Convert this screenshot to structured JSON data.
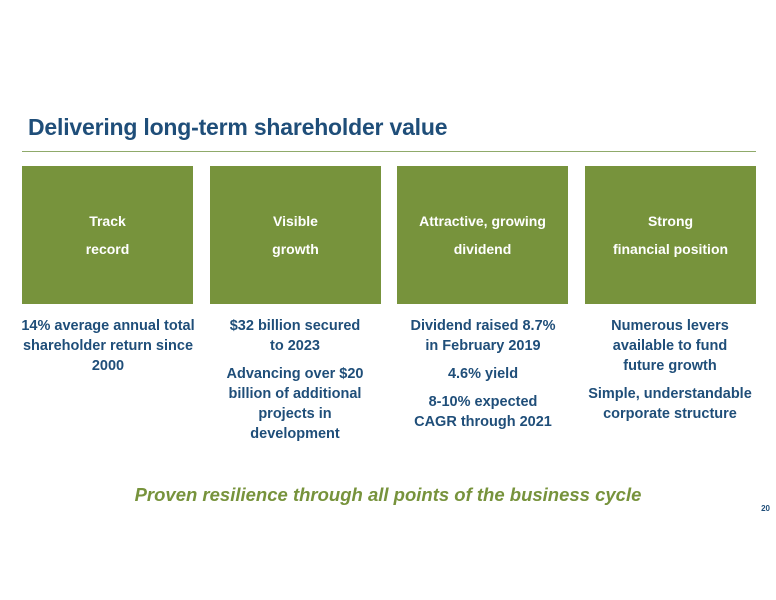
{
  "title": "Delivering long-term shareholder value",
  "boxes": [
    {
      "line1": "Track",
      "line2": "record"
    },
    {
      "line1": "Visible",
      "line2": "growth"
    },
    {
      "line1": "Attractive, growing",
      "line2": "dividend"
    },
    {
      "line1": "Strong",
      "line2": "financial position"
    }
  ],
  "details": [
    {
      "p1": "14% average annual total shareholder return since 2000"
    },
    {
      "p1": "$32 billion secured to 2023",
      "p2": "Advancing over $20 billion of additional projects in development"
    },
    {
      "p1": "Dividend raised 8.7% in February 2019",
      "p2": "4.6% yield",
      "p3": "8-10% expected CAGR through 2021"
    },
    {
      "p1": "Numerous levers available to fund future growth",
      "p2": "Simple, understandable corporate structure"
    }
  ],
  "tagline": "Proven resilience through all points of the business cycle",
  "page_number": "20",
  "colors": {
    "title": "#1f4e79",
    "box_fill": "#77933c",
    "tagline": "#77933c"
  }
}
